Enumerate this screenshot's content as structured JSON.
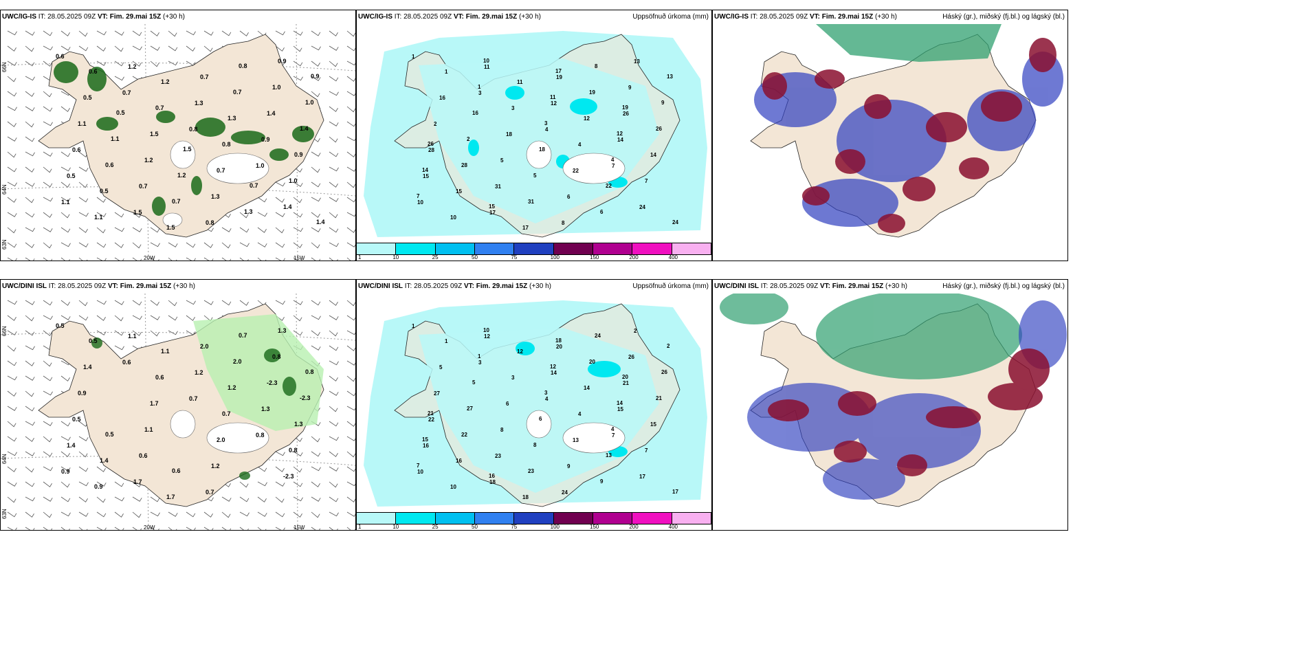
{
  "panels": {
    "top_left": {
      "title_model": "UWC/IG-IS",
      "title_rest": " IT: 28.05.2025 09Z ",
      "title_vt": "VT: Fim. 29.mai 15Z",
      "title_lead": " (+30 h)"
    },
    "top_mid": {
      "title_model": "UWC/IG-IS",
      "title_rest": " IT: 28.05.2025 09Z ",
      "title_vt": "VT: Fim. 29.mai 15Z",
      "title_lead": " (+30 h)",
      "right_label": "Uppsöfnuð úrkoma (mm)"
    },
    "top_right": {
      "title_model": "UWC/IG-IS",
      "title_rest": " IT: 28.05.2025 09Z ",
      "title_vt": "VT: Fim. 29.mai 15Z",
      "title_lead": " (+30 h)",
      "right_label": "Háský (gr.), miðský (fj.bl.) og lágský (bl.)"
    },
    "bot_left": {
      "title_model": "UWC/DINI ISL",
      "title_rest": " IT: 28.05.2025 09Z ",
      "title_vt": "VT: Fim. 29.mai 15Z",
      "title_lead": " (+30 h)"
    },
    "bot_mid": {
      "title_model": "UWC/DINI ISL",
      "title_rest": " IT: 28.05.2025 09Z ",
      "title_vt": "VT: Fim. 29.mai 15Z",
      "title_lead": " (+30 h)",
      "right_label": "Uppsöfnuð úrkoma (mm)"
    },
    "bot_right": {
      "title_model": "UWC/DINI ISL",
      "title_rest": " IT: 28.05.2025 09Z ",
      "title_vt": "VT: Fim. 29.mai 15Z",
      "title_lead": " (+30 h)",
      "right_label": "Háský (gr.), miðský (fj.bl.) og lágský (bl.)"
    }
  },
  "axes": {
    "lon_20": "20W",
    "lon_15": "15W",
    "lat_66": "66N",
    "lat_64": "64N",
    "lat_63": "63N"
  },
  "legend": {
    "labels": [
      "1",
      "10",
      "25",
      "50",
      "75",
      "100",
      "150",
      "200",
      "400"
    ],
    "colors": [
      "#b8f8f8",
      "#00e8f0",
      "#00c0f0",
      "#3080f0",
      "#2040c0",
      "#700050",
      "#b00090",
      "#f010c0",
      "#f8b0f0"
    ]
  },
  "colors": {
    "land": "#f3e6d6",
    "precip_light": "#b8f8f8",
    "precip_mid": "#00e8f0",
    "cloud_high": "#30a070",
    "cloud_mid": "#3040c0",
    "cloud_low": "#8a1030"
  },
  "precip_top_labels": [
    "1",
    "3",
    "4",
    "7",
    "10",
    "11",
    "12",
    "14",
    "15",
    "17",
    "19",
    "26",
    "28",
    "31",
    "8",
    "9",
    "2",
    "5",
    "6",
    "13",
    "16",
    "18",
    "22",
    "24"
  ],
  "precip_bot_labels": [
    "1",
    "3",
    "4",
    "7",
    "10",
    "12",
    "14",
    "15",
    "16",
    "18",
    "20",
    "21",
    "22",
    "23",
    "24",
    "26",
    "27",
    "8",
    "9",
    "2",
    "5",
    "6",
    "13",
    "17"
  ],
  "snow_top_labels": [
    "0.6",
    "0.7",
    "0.8",
    "1.0",
    "1.1",
    "1.2",
    "1.3",
    "0.9",
    "0.5",
    "1.5",
    "0.7",
    "1.4"
  ],
  "snow_bot_labels": [
    "0.5",
    "0.6",
    "0.7",
    "0.8",
    "0.9",
    "1.1",
    "1.2",
    "1.3",
    "1.4",
    "1.7",
    "2.0",
    "-2.3"
  ]
}
